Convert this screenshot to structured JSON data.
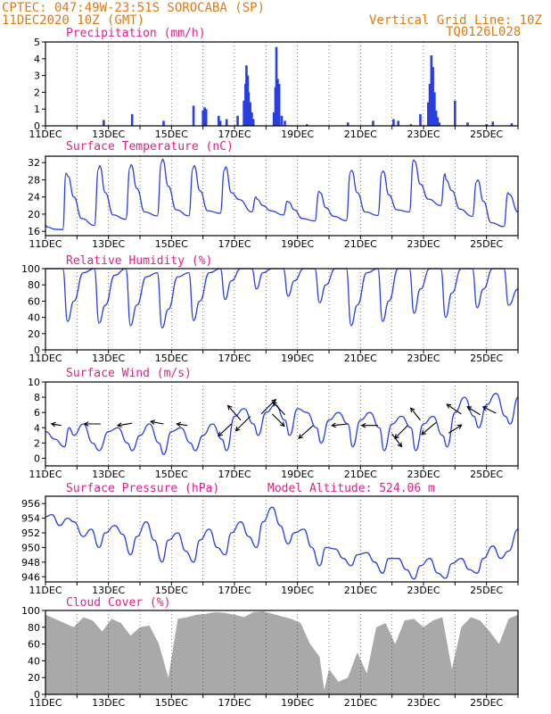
{
  "header": {
    "line1": "CPTEC:  047:49W-23:51S  SOROCABA (SP)",
    "line2": "11DEC2020 10Z (GMT)",
    "grid_note": "Vertical Grid Line: 10Z",
    "code": "TQ0126L028"
  },
  "model_altitude": "Model Altitude: 524.06 m",
  "colors": {
    "series": "#2a3fe0",
    "header": "#e07a10",
    "title": "#e0208a",
    "cloud": "#a9a9a9"
  },
  "chart_data": [
    {
      "id": "precip",
      "type": "bar",
      "title": "Precipitation (mm/h)",
      "ylim": [
        0,
        5
      ],
      "yticks": [
        0,
        1,
        2,
        3,
        4,
        5
      ],
      "x_tick_labels": [
        "11DEC",
        "13DEC",
        "15DEC",
        "17DEC",
        "19DEC",
        "21DEC",
        "23DEC",
        "25DEC"
      ],
      "x_range_days": [
        0,
        15
      ],
      "bars": [
        [
          1.85,
          0.35
        ],
        [
          2.75,
          0.7
        ],
        [
          3.75,
          0.3
        ],
        [
          4.7,
          1.2
        ],
        [
          5.0,
          0.9
        ],
        [
          5.05,
          1.1
        ],
        [
          5.1,
          1.0
        ],
        [
          5.5,
          0.6
        ],
        [
          5.55,
          0.3
        ],
        [
          5.75,
          0.4
        ],
        [
          6.1,
          0.6
        ],
        [
          6.3,
          1.5
        ],
        [
          6.35,
          2.5
        ],
        [
          6.38,
          3.6
        ],
        [
          6.42,
          3.0
        ],
        [
          6.45,
          2.0
        ],
        [
          6.5,
          1.4
        ],
        [
          6.55,
          0.8
        ],
        [
          6.6,
          0.4
        ],
        [
          7.25,
          0.8
        ],
        [
          7.3,
          2.3
        ],
        [
          7.33,
          4.7
        ],
        [
          7.37,
          2.8
        ],
        [
          7.42,
          2.5
        ],
        [
          7.5,
          0.6
        ],
        [
          7.6,
          0.3
        ],
        [
          8.3,
          0.1
        ],
        [
          9.6,
          0.2
        ],
        [
          10.4,
          0.3
        ],
        [
          11.05,
          0.4
        ],
        [
          11.2,
          0.3
        ],
        [
          11.6,
          0.1
        ],
        [
          11.9,
          0.7
        ],
        [
          12.15,
          1.4
        ],
        [
          12.2,
          2.5
        ],
        [
          12.25,
          4.2
        ],
        [
          12.3,
          3.5
        ],
        [
          12.35,
          2.0
        ],
        [
          12.4,
          0.9
        ],
        [
          12.45,
          0.5
        ],
        [
          12.5,
          0.2
        ],
        [
          13.0,
          1.5
        ],
        [
          13.4,
          0.2
        ],
        [
          14.0,
          0.1
        ],
        [
          14.2,
          0.25
        ],
        [
          14.8,
          0.15
        ]
      ]
    },
    {
      "id": "temp",
      "type": "line",
      "title": "Surface Temperature (nC)",
      "ylim": [
        15,
        33.5
      ],
      "yticks": [
        16,
        20,
        24,
        28,
        32
      ],
      "x_tick_labels": [
        "11DEC",
        "13DEC",
        "15DEC",
        "17DEC",
        "19DEC",
        "21DEC",
        "23DEC",
        "25DEC"
      ],
      "x_days": [
        0,
        0.05,
        0.3,
        0.55,
        0.65,
        0.72,
        0.9,
        1.15,
        1.55,
        1.68,
        1.72,
        1.9,
        2.15,
        2.55,
        2.68,
        2.72,
        2.9,
        3.15,
        3.55,
        3.68,
        3.72,
        3.9,
        4.15,
        4.55,
        4.68,
        4.72,
        4.9,
        5.15,
        5.55,
        5.68,
        5.72,
        5.9,
        6.15,
        6.55,
        6.68,
        6.72,
        6.9,
        7.15,
        7.55,
        7.68,
        7.72,
        7.9,
        8.15,
        8.55,
        8.68,
        8.72,
        8.9,
        9.15,
        9.55,
        9.68,
        9.72,
        9.9,
        10.15,
        10.55,
        10.68,
        10.72,
        10.9,
        11.15,
        11.55,
        11.68,
        11.72,
        11.9,
        12.15,
        12.55,
        12.68,
        12.72,
        12.9,
        13.15,
        13.55,
        13.68,
        13.72,
        13.9,
        14.15,
        14.55,
        14.68,
        14.72,
        15.0
      ],
      "values": [
        17.5,
        17.0,
        16.5,
        16.4,
        29.5,
        28.8,
        24.0,
        19.0,
        17.4,
        30.5,
        31.3,
        25.0,
        19.8,
        18.8,
        30.8,
        31.5,
        26.0,
        20.5,
        19.6,
        32.0,
        32.8,
        26.5,
        21.0,
        19.6,
        30.6,
        31.3,
        25.5,
        20.8,
        20.2,
        30.3,
        31.0,
        25.0,
        23.4,
        20.5,
        24.0,
        23.5,
        22.0,
        20.8,
        19.8,
        23.0,
        22.8,
        21.0,
        19.0,
        18.4,
        25.3,
        25.0,
        21.5,
        19.5,
        18.5,
        29.8,
        30.2,
        25.0,
        20.5,
        19.7,
        29.7,
        30.0,
        24.5,
        21.0,
        20.5,
        32.6,
        32.3,
        27.0,
        23.5,
        22.0,
        29.4,
        28.0,
        25.5,
        21.2,
        19.5,
        27.5,
        28.0,
        23.0,
        18.0,
        17.1,
        25.0,
        24.6,
        20.5
      ]
    },
    {
      "id": "humidity",
      "type": "line",
      "title": "Relative Humidity (%)",
      "ylim": [
        0,
        100
      ],
      "yticks": [
        0,
        20,
        40,
        60,
        80,
        100
      ],
      "x_tick_labels": [
        "11DEC",
        "13DEC",
        "15DEC",
        "17DEC",
        "19DEC",
        "21DEC",
        "23DEC",
        "25DEC"
      ],
      "x_days": [
        0,
        0.3,
        0.55,
        0.7,
        0.9,
        1.2,
        1.55,
        1.7,
        1.9,
        2.2,
        2.55,
        2.7,
        2.9,
        3.2,
        3.55,
        3.7,
        3.9,
        4.2,
        4.55,
        4.7,
        4.9,
        5.2,
        5.55,
        5.7,
        5.9,
        6.2,
        6.55,
        6.7,
        6.9,
        7.2,
        7.55,
        7.7,
        7.9,
        8.2,
        8.55,
        8.7,
        8.9,
        9.2,
        9.55,
        9.7,
        9.9,
        10.2,
        10.55,
        10.7,
        10.9,
        11.2,
        11.55,
        11.7,
        11.9,
        12.2,
        12.55,
        12.7,
        12.9,
        13.2,
        13.55,
        13.7,
        13.9,
        14.2,
        14.55,
        14.7,
        15.0
      ],
      "values": [
        100,
        100,
        100,
        35,
        60,
        95,
        100,
        33,
        55,
        92,
        100,
        30,
        55,
        90,
        95,
        27,
        50,
        90,
        95,
        36,
        60,
        95,
        100,
        62,
        85,
        100,
        100,
        75,
        95,
        100,
        100,
        66,
        85,
        100,
        100,
        58,
        80,
        100,
        100,
        30,
        55,
        95,
        100,
        35,
        60,
        100,
        100,
        45,
        75,
        100,
        100,
        40,
        70,
        100,
        100,
        52,
        75,
        100,
        100,
        55,
        75
      ]
    },
    {
      "id": "wind",
      "type": "line",
      "title": "Surface Wind (m/s)",
      "ylim": [
        -1,
        10
      ],
      "yticks": [
        0,
        2,
        4,
        6,
        8,
        10
      ],
      "x_tick_labels": [
        "11DEC",
        "13DEC",
        "15DEC",
        "17DEC",
        "19DEC",
        "21DEC",
        "23DEC",
        "25DEC"
      ],
      "x_days": [
        0,
        0.3,
        0.6,
        0.75,
        0.9,
        1.2,
        1.5,
        1.7,
        2.0,
        2.3,
        2.6,
        2.75,
        3.0,
        3.3,
        3.6,
        3.75,
        4.0,
        4.3,
        4.6,
        4.75,
        5.0,
        5.3,
        5.6,
        5.75,
        6.0,
        6.3,
        6.6,
        6.75,
        7.0,
        7.3,
        7.6,
        7.75,
        8.0,
        8.3,
        8.6,
        8.75,
        9.0,
        9.3,
        9.6,
        9.75,
        10.0,
        10.3,
        10.6,
        10.75,
        11.0,
        11.3,
        11.6,
        11.75,
        12.0,
        12.3,
        12.6,
        12.75,
        13.0,
        13.3,
        13.6,
        13.75,
        14.0,
        14.3,
        14.6,
        14.75,
        15.0
      ],
      "values": [
        3.5,
        2.5,
        1.5,
        4.0,
        3.0,
        4.5,
        2.0,
        1.0,
        3.5,
        4.0,
        2.0,
        1.0,
        3.0,
        4.5,
        2.0,
        0.5,
        3.5,
        4.0,
        2.0,
        1.0,
        3.0,
        4.5,
        2.5,
        1.0,
        5.5,
        6.5,
        4.5,
        3.0,
        6.0,
        7.0,
        5.0,
        3.0,
        6.5,
        6.0,
        4.0,
        2.0,
        5.0,
        6.0,
        4.5,
        1.5,
        5.0,
        6.0,
        4.0,
        1.0,
        4.5,
        5.5,
        4.0,
        1.0,
        4.5,
        5.5,
        3.0,
        1.5,
        6.0,
        8.0,
        5.5,
        4.0,
        7.0,
        8.5,
        5.5,
        4.5,
        8.0
      ]
    },
    {
      "id": "pressure",
      "type": "line",
      "title": "Surface Pressure (hPa)",
      "ylim": [
        945.3,
        957
      ],
      "yticks": [
        946,
        948,
        950,
        952,
        954,
        956
      ],
      "x_tick_labels": [
        "11DEC",
        "13DEC",
        "15DEC",
        "17DEC",
        "19DEC",
        "21DEC",
        "23DEC",
        "25DEC"
      ],
      "x_days": [
        0,
        0.2,
        0.45,
        0.7,
        0.9,
        1.2,
        1.45,
        1.7,
        1.9,
        2.2,
        2.45,
        2.7,
        2.9,
        3.2,
        3.45,
        3.7,
        3.9,
        4.2,
        4.45,
        4.7,
        4.9,
        5.2,
        5.45,
        5.7,
        5.9,
        6.2,
        6.45,
        6.7,
        6.9,
        7.2,
        7.45,
        7.7,
        7.9,
        8.2,
        8.45,
        8.7,
        8.9,
        9.2,
        9.45,
        9.7,
        9.9,
        10.2,
        10.45,
        10.7,
        10.9,
        11.2,
        11.45,
        11.7,
        11.9,
        12.2,
        12.45,
        12.7,
        12.9,
        13.2,
        13.45,
        13.7,
        13.9,
        14.2,
        14.45,
        14.7,
        15.0
      ],
      "values": [
        954.2,
        954.5,
        953.0,
        954.0,
        953.5,
        951.5,
        952.5,
        950.0,
        952.0,
        953.0,
        951.8,
        949.0,
        951.5,
        953.5,
        951.0,
        948.0,
        951.0,
        952.0,
        949.5,
        948.0,
        951.0,
        952.5,
        950.0,
        949.0,
        952.0,
        953.5,
        951.5,
        950.0,
        953.5,
        955.5,
        953.0,
        950.5,
        952.0,
        952.5,
        950.0,
        947.5,
        950.0,
        949.8,
        948.5,
        947.5,
        949.0,
        949.3,
        948.0,
        946.5,
        948.5,
        948.5,
        947.0,
        945.7,
        947.5,
        948.5,
        946.5,
        945.8,
        947.8,
        948.5,
        947.0,
        946.5,
        948.5,
        950.2,
        948.5,
        949.5,
        952.5
      ]
    },
    {
      "id": "cloud",
      "type": "area",
      "title": "Cloud Cover (%)",
      "ylim": [
        0,
        100
      ],
      "yticks": [
        0,
        20,
        40,
        60,
        80,
        100
      ],
      "x_tick_labels": [
        "11DEC",
        "13DEC",
        "15DEC",
        "17DEC",
        "19DEC",
        "21DEC",
        "23DEC",
        "25DEC"
      ],
      "x_days": [
        0,
        0.3,
        0.6,
        0.9,
        1.2,
        1.5,
        1.8,
        2.1,
        2.4,
        2.7,
        3.0,
        3.3,
        3.6,
        3.9,
        4.2,
        4.5,
        4.8,
        5.1,
        5.4,
        5.7,
        6.0,
        6.3,
        6.6,
        6.9,
        7.2,
        7.5,
        7.8,
        8.1,
        8.4,
        8.7,
        8.85,
        9.0,
        9.3,
        9.6,
        9.9,
        10.2,
        10.5,
        10.8,
        11.1,
        11.4,
        11.7,
        12.0,
        12.3,
        12.6,
        12.9,
        13.2,
        13.5,
        13.8,
        14.1,
        14.4,
        14.7,
        15.0
      ],
      "values": [
        95,
        90,
        85,
        80,
        92,
        88,
        75,
        90,
        85,
        70,
        80,
        82,
        60,
        20,
        90,
        92,
        95,
        96,
        98,
        97,
        95,
        92,
        98,
        99,
        96,
        93,
        90,
        85,
        60,
        45,
        5,
        30,
        15,
        20,
        50,
        25,
        80,
        85,
        60,
        88,
        90,
        80,
        88,
        92,
        30,
        80,
        92,
        88,
        75,
        60,
        90,
        95
      ]
    }
  ],
  "wind_vectors": {
    "x_days": [
      0.5,
      1.75,
      2.75,
      3.75,
      4.5,
      5.9,
      6.2,
      6.5,
      6.85,
      7.2,
      7.6,
      8.5,
      9.6,
      10.55,
      11.0,
      11.5,
      11.9,
      12.4,
      12.8,
      13.2,
      13.8,
      14.3
    ],
    "y_values": [
      4.3,
      4.5,
      4.6,
      4.5,
      4.3,
      4.5,
      5.0,
      5.5,
      5.8,
      5.8,
      5.7,
      4.3,
      4.5,
      4.3,
      3.2,
      4.3,
      5.0,
      4.7,
      3.3,
      5.8,
      5.7,
      5.9
    ],
    "u": [
      -1.2,
      -2.0,
      -1.8,
      -1.6,
      -1.3,
      -1.6,
      -1.6,
      -1.8,
      1.8,
      1.5,
      -1.5,
      -1.8,
      -2.0,
      -2.0,
      1.2,
      -1.6,
      -1.2,
      -1.8,
      1.6,
      -1.8,
      -1.6,
      -1.6
    ],
    "v": [
      0.2,
      0,
      -0.3,
      0.3,
      0.2,
      -1.5,
      1.8,
      -1.8,
      1.8,
      -1.5,
      1.6,
      -1.6,
      -0.2,
      0,
      -1.6,
      -1.6,
      1.5,
      -1.5,
      1.0,
      1.2,
      1.0,
      0.8
    ]
  }
}
